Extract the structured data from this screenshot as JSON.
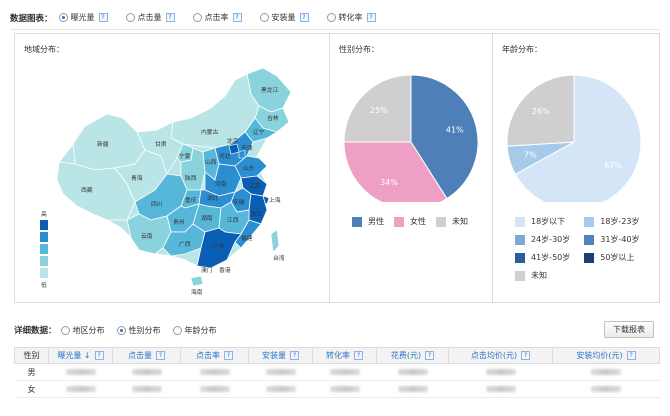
{
  "header": {
    "label": "数据图表：",
    "options": [
      {
        "label": "曝光量",
        "selected": true
      },
      {
        "label": "点击量",
        "selected": false
      },
      {
        "label": "点击率",
        "selected": false
      },
      {
        "label": "安装量",
        "selected": false
      },
      {
        "label": "转化率",
        "selected": false
      }
    ],
    "help_glyph": "?"
  },
  "region": {
    "title": "地域分布：",
    "scale_high": "高",
    "scale_low": "低",
    "scale_colors": [
      "#0a5fb4",
      "#2a8ed1",
      "#56b7d8",
      "#8ad3dc",
      "#b9e5e7"
    ],
    "provinces": [
      "黑龙江",
      "吉林",
      "辽宁",
      "内蒙古",
      "新疆",
      "西藏",
      "青海",
      "甘肃",
      "宁夏",
      "陕西",
      "山西",
      "河北",
      "北京",
      "天津",
      "山东",
      "河南",
      "江苏",
      "安徽",
      "上海",
      "浙江",
      "湖北",
      "四川",
      "重庆",
      "湖南",
      "江西",
      "福建",
      "贵州",
      "云南",
      "广西",
      "广东",
      "台湾",
      "海南",
      "香港",
      "澳门"
    ]
  },
  "gender": {
    "title": "性别分布：",
    "chart_data": {
      "type": "pie",
      "categories": [
        "男性",
        "女性",
        "未知"
      ],
      "values": [
        41,
        34,
        25
      ],
      "labels": [
        "41%",
        "34%",
        "25%"
      ],
      "colors": [
        "#4e7fb8",
        "#ee9fc4",
        "#cfcfcf"
      ],
      "legend": "bottom"
    }
  },
  "age": {
    "title": "年龄分布：",
    "chart_data": {
      "type": "pie",
      "categories": [
        "18岁以下",
        "18岁-23岁",
        "24岁-30岁",
        "31岁-40岁",
        "41岁-50岁",
        "50岁以上",
        "未知"
      ],
      "values": [
        67,
        7,
        0,
        0,
        0,
        0,
        26
      ],
      "labels": [
        "67%",
        "7%",
        "",
        "",
        "",
        "",
        "26%"
      ],
      "colors": [
        "#d3e5f6",
        "#a7c9ea",
        "#7ea9d6",
        "#4f84bf",
        "#2b5d99",
        "#1c3e72",
        "#cfcfcf"
      ],
      "legend": "bottom"
    }
  },
  "detail": {
    "label": "详细数据：",
    "options": [
      {
        "label": "地区分布",
        "selected": false
      },
      {
        "label": "性别分布",
        "selected": true
      },
      {
        "label": "年龄分布",
        "selected": false
      }
    ],
    "download_label": "下载报表",
    "columns": [
      "性别",
      "曝光量 ↓",
      "点击量",
      "点击率",
      "安装量",
      "转化率",
      "花费(元)",
      "点击均价(元)",
      "安装均价(元)"
    ],
    "rows": [
      {
        "sex": "男"
      },
      {
        "sex": "女"
      }
    ]
  }
}
